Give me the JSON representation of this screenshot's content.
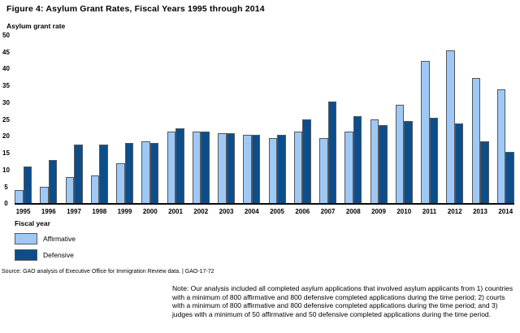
{
  "figure": {
    "title": "Figure 4: Asylum Grant Rates, Fiscal Years 1995 through 2014",
    "y_axis_title": "Asylum grant rate",
    "x_axis_title": "Fiscal year",
    "source": "Source: GAO analysis of Executive Office for Immigration Review data.  |  GAO-17-72",
    "note": "Note: Our analysis included all completed asylum applications that involved asylum applicants from 1) countries with a minimum of 800 affirmative and 800 defensive completed applications during the time period; 2) courts with a minimum of 800 affirmative and 800 defensive completed applications during the time period; and 3) judges with a minimum of 50 affirmative and 50 defensive completed applications during the time period."
  },
  "legend": {
    "items": [
      {
        "label": "Affirmative",
        "color": "#9EC9F6"
      },
      {
        "label": "Defensive",
        "color": "#0C4E8C"
      }
    ]
  },
  "colors": {
    "bar_border": "#55565a",
    "axis_line": "#0b0b0b"
  },
  "chart_data": {
    "type": "bar",
    "title": "Figure 4: Asylum Grant Rates, Fiscal Years 1995 through 2014",
    "xlabel": "Fiscal year",
    "ylabel": "Asylum grant rate",
    "ylim": [
      0,
      50
    ],
    "yticks": [
      0,
      5,
      10,
      15,
      20,
      25,
      30,
      35,
      40,
      45,
      50
    ],
    "grid": false,
    "legend_position": "bottom-left",
    "categories": [
      "1995",
      "1996",
      "1997",
      "1998",
      "1999",
      "2000",
      "2001",
      "2002",
      "2003",
      "2004",
      "2005",
      "2006",
      "2007",
      "2008",
      "2009",
      "2010",
      "2011",
      "2012",
      "2013",
      "2014"
    ],
    "series": [
      {
        "name": "Affirmative",
        "color": "#9EC9F6",
        "values": [
          4,
          5,
          8,
          8.5,
          12,
          18.5,
          21.5,
          21.5,
          21,
          20.5,
          19.5,
          21.5,
          19.5,
          21.5,
          25,
          29.5,
          42.5,
          45.5,
          37.5,
          34
        ]
      },
      {
        "name": "Defensive",
        "color": "#0C4E8C",
        "values": [
          11,
          13,
          17.5,
          17.5,
          18,
          18,
          22.5,
          21.5,
          21,
          20.5,
          20.5,
          25,
          30.5,
          26,
          23.5,
          24.5,
          25.5,
          24,
          18.5,
          15.5
        ]
      }
    ]
  }
}
